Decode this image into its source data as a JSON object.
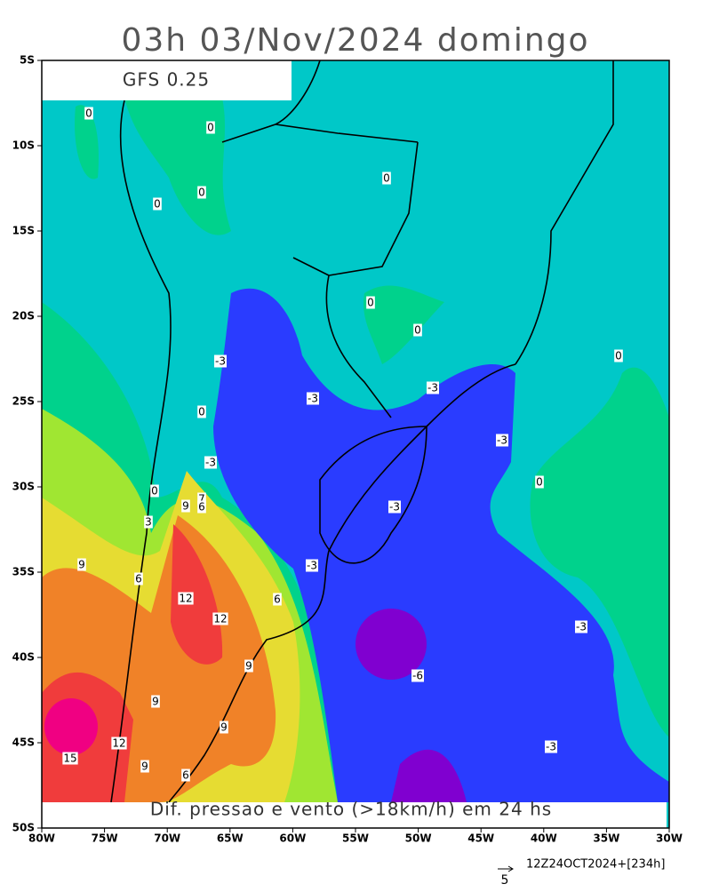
{
  "title": "03h 03/Nov/2024 domingo",
  "model_label": "GFS 0.25",
  "caption": "Dif. pressao e vento (>18km/h) em 24 hs",
  "lat_labels": [
    "5S",
    "10S",
    "15S",
    "20S",
    "25S",
    "30S",
    "35S",
    "40S",
    "45S",
    "50S"
  ],
  "lon_labels": [
    "80W",
    "75W",
    "70W",
    "65W",
    "60W",
    "55W",
    "50W",
    "45W",
    "40W",
    "35W",
    "30W"
  ],
  "contour_labels": [
    "0",
    "0",
    "0",
    "0",
    "0",
    "0",
    "0",
    "0",
    "-3",
    "-3",
    "-3",
    "0",
    "-3",
    "-3",
    "0",
    "0",
    "9",
    "7",
    "6",
    "-3",
    "3",
    "9",
    "6",
    "-3",
    "12",
    "6",
    "12",
    "-3",
    "9",
    "-6",
    "9",
    "9",
    "12",
    "-3",
    "15",
    "9",
    "6"
  ],
  "vector_scale": "5",
  "run_label": "12Z24OCT2024+[234h]"
}
